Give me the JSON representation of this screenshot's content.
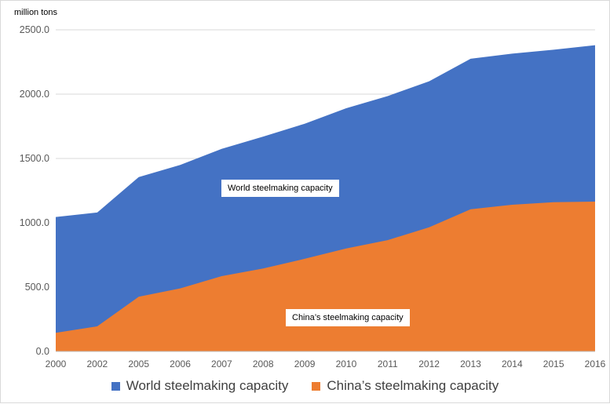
{
  "chart_data": {
    "type": "area",
    "stacked": false,
    "unit_label": "million tons",
    "categories": [
      "2000",
      "2002",
      "2005",
      "2006",
      "2007",
      "2008",
      "2009",
      "2010",
      "2011",
      "2012",
      "2013",
      "2014",
      "2015",
      "2016"
    ],
    "series": [
      {
        "name": "World steelmaking capacity",
        "color": "#4472C4",
        "values": [
          1045,
          1080,
          1355,
          1450,
          1575,
          1670,
          1770,
          1890,
          1985,
          2100,
          2275,
          2315,
          2345,
          2380
        ]
      },
      {
        "name": "China’s steelmaking capacity",
        "color": "#ED7D31",
        "values": [
          145,
          195,
          425,
          490,
          585,
          645,
          720,
          800,
          865,
          965,
          1105,
          1140,
          1160,
          1165
        ]
      }
    ],
    "y_ticks": [
      "0.0",
      "500.0",
      "1000.0",
      "1500.0",
      "2000.0",
      "2500.0"
    ],
    "ylim": [
      0,
      2500
    ],
    "grid": true,
    "legend_position": "bottom",
    "annotations": [
      {
        "text": "World steelmaking capacity"
      },
      {
        "text": "China’s steelmaking capacity"
      }
    ]
  }
}
